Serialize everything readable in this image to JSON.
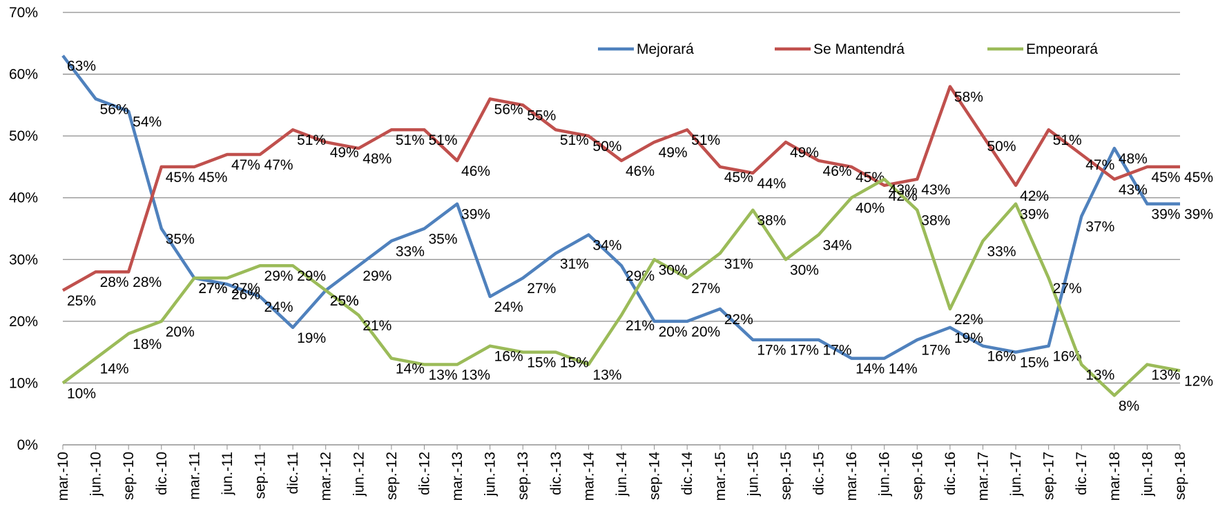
{
  "chart_data": {
    "type": "line",
    "categories": [
      "mar.-10",
      "jun.-10",
      "sep.-10",
      "dic.-10",
      "mar.-11",
      "jun.-11",
      "sep.-11",
      "dic.-11",
      "mar.-12",
      "jun.-12",
      "sep.-12",
      "dic.-12",
      "mar.-13",
      "jun.-13",
      "sep.-13",
      "dic.-13",
      "mar.-14",
      "jun.-14",
      "sep.-14",
      "dic.-14",
      "mar.-15",
      "jun.-15",
      "sep.-15",
      "dic.-15",
      "mar.-16",
      "jun.-16",
      "sep.-16",
      "dic.-16",
      "mar.-17",
      "jun.-17",
      "sep.-17",
      "dic.-17",
      "mar.-18",
      "jun.-18",
      "sep.-18"
    ],
    "series": [
      {
        "name": "Mejorará",
        "color": "#4f81bd",
        "values": [
          63,
          56,
          54,
          35,
          27,
          26,
          24,
          19,
          25,
          29,
          33,
          35,
          39,
          24,
          27,
          31,
          34,
          29,
          20,
          20,
          22,
          17,
          17,
          17,
          14,
          14,
          17,
          19,
          16,
          15,
          16,
          37,
          48,
          39,
          39
        ],
        "value_labels": [
          "63%",
          "56%",
          "54%",
          "35%",
          "27%",
          "26%",
          "24%",
          "19%",
          "25%",
          "29%",
          "33%",
          "35%",
          "39%",
          "24%",
          "27%",
          "31%",
          "34%",
          "29%",
          "20%",
          "20%",
          "22%",
          "17%",
          "17%",
          "17%",
          "14%",
          "14%",
          "17%",
          "19%",
          "16%",
          "15%",
          "16%",
          "37%",
          "48%",
          "39%",
          "39%"
        ]
      },
      {
        "name": "Se Mantendrá",
        "color": "#c0504d",
        "values": [
          25,
          28,
          28,
          45,
          45,
          47,
          47,
          51,
          49,
          48,
          51,
          51,
          46,
          56,
          55,
          51,
          50,
          46,
          49,
          51,
          45,
          44,
          49,
          46,
          45,
          42,
          43,
          58,
          50,
          42,
          51,
          47,
          43,
          45,
          45
        ],
        "value_labels": [
          "25%",
          "28%",
          "28%",
          "45%",
          "45%",
          "47%",
          "47%",
          "51%",
          "49%",
          "48%",
          "51%",
          "51%",
          "46%",
          "56%",
          "55%",
          "51%",
          "50%",
          "46%",
          "49%",
          "51%",
          "45%",
          "44%",
          "49%",
          "46%",
          "45%",
          "42%",
          "43%",
          "58%",
          "50%",
          "42%",
          "51%",
          "47%",
          "43%",
          "45%",
          "45%"
        ]
      },
      {
        "name": "Empeorará",
        "color": "#9bbb59",
        "values": [
          10,
          14,
          18,
          20,
          27,
          27,
          29,
          29,
          25,
          21,
          14,
          13,
          13,
          16,
          15,
          15,
          13,
          21,
          30,
          27,
          31,
          38,
          30,
          34,
          40,
          43,
          38,
          22,
          33,
          39,
          27,
          13,
          8,
          13,
          12
        ],
        "value_labels": [
          "10%",
          "14%",
          "18%",
          "20%",
          "27%",
          "27%",
          "29%",
          "29%",
          "25%",
          "21%",
          "14%",
          "13%",
          "13%",
          "16%",
          "15%",
          "15%",
          "13%",
          "21%",
          "30%",
          "27%",
          "31%",
          "38%",
          "30%",
          "34%",
          "40%",
          "43%",
          "38%",
          "22%",
          "33%",
          "39%",
          "27%",
          "13%",
          "8%",
          "13%",
          "12%"
        ]
      }
    ],
    "ylim": [
      0,
      70
    ],
    "yticks": [
      {
        "value": 0,
        "label": "0%"
      },
      {
        "value": 10,
        "label": "10%"
      },
      {
        "value": 20,
        "label": "20%"
      },
      {
        "value": 30,
        "label": "30%"
      },
      {
        "value": 40,
        "label": "40%"
      },
      {
        "value": 50,
        "label": "50%"
      },
      {
        "value": 60,
        "label": "60%"
      },
      {
        "value": 70,
        "label": "70%"
      }
    ],
    "grid": true,
    "legend": "top"
  }
}
